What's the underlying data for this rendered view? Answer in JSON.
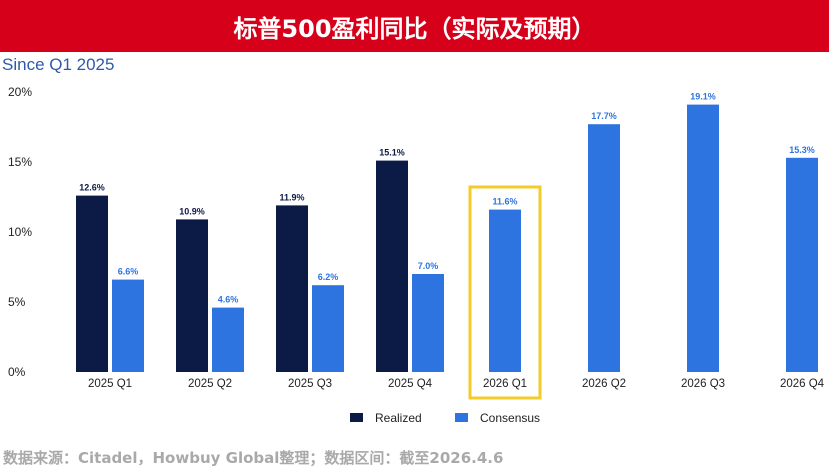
{
  "header": {
    "title": "标普500盈利同比（实际及预期）",
    "subtitle": "Since Q1 2025"
  },
  "footer": {
    "source": "数据来源：Citadel，Howbuy Global整理；数据区间：截至2026.4.6"
  },
  "colors": {
    "realized": "#0c1a46",
    "consensus": "#2d74e0",
    "highlight": "#f2cd2a",
    "banner": "#d7001a"
  },
  "chart_data": {
    "type": "bar",
    "title": "标普500盈利同比（实际及预期）",
    "subtitle": "Since Q1 2025",
    "categories": [
      "2025 Q1",
      "2025 Q2",
      "2025 Q3",
      "2025 Q4",
      "2026 Q1",
      "2026 Q2",
      "2026 Q3",
      "2026 Q4"
    ],
    "series": [
      {
        "name": "Realized",
        "values": [
          12.6,
          10.9,
          11.9,
          15.1,
          null,
          null,
          null,
          null
        ],
        "labels": [
          "12.6%",
          "10.9%",
          "11.9%",
          "15.1%",
          null,
          null,
          null,
          null
        ]
      },
      {
        "name": "Consensus",
        "values": [
          6.6,
          4.6,
          6.2,
          7.0,
          11.6,
          17.7,
          19.1,
          15.3
        ],
        "labels": [
          "6.6%",
          "4.6%",
          "6.2%",
          "7.0%",
          "11.6%",
          "17.7%",
          "19.1%",
          "15.3%"
        ]
      }
    ],
    "yticks": [
      "0%",
      "5%",
      "10%",
      "15%",
      "20%"
    ],
    "ylim": [
      0,
      20
    ],
    "legend": "bottom-center",
    "highlighted_category": "2026 Q1",
    "xlabel": "",
    "ylabel": "",
    "grid": false
  }
}
